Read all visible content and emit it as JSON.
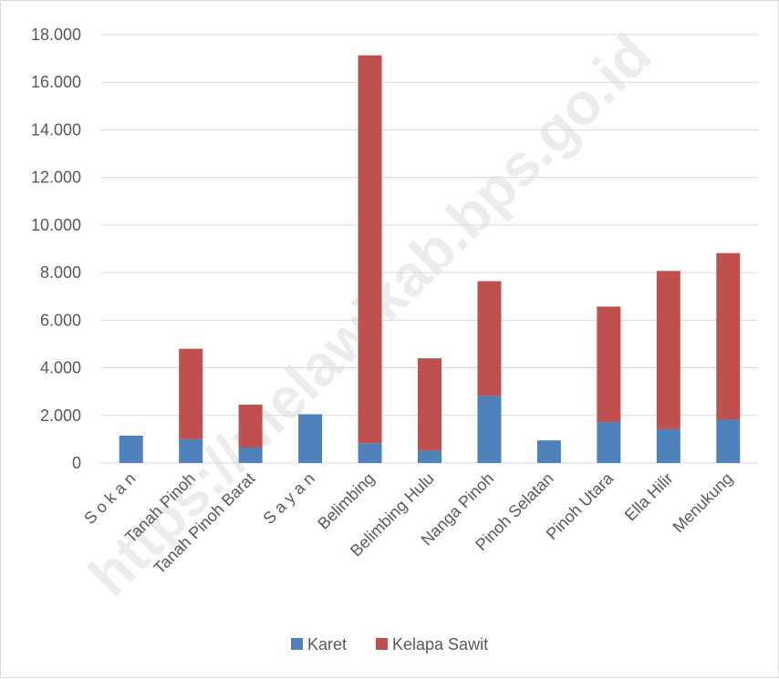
{
  "watermark": "https://melawikab.bps.go.id",
  "colors": {
    "karet": "#4f81bd",
    "kelapa_sawit": "#c0504d",
    "grid": "#d9d9d9",
    "text": "#595959"
  },
  "chart_data": {
    "type": "bar",
    "stacked": true,
    "categories": [
      "S o k a n",
      "Tanah Pinoh",
      "Tanah Pinoh Barat",
      "S a y a n",
      "Belimbing",
      "Belimbing Hulu",
      "Nanga Pinoh",
      "Pinoh Selatan",
      "Pinoh Utara",
      "Ella Hilir",
      "Menukung"
    ],
    "series": [
      {
        "name": "Karet",
        "color": "#4f81bd",
        "values": [
          1150,
          1000,
          650,
          2050,
          830,
          520,
          2820,
          950,
          1720,
          1420,
          1820
        ]
      },
      {
        "name": "Kelapa Sawit",
        "color": "#c0504d",
        "values": [
          0,
          3800,
          1800,
          0,
          16300,
          3880,
          4820,
          0,
          4850,
          6650,
          7000
        ]
      }
    ],
    "ylim": [
      0,
      18000
    ],
    "yticks": [
      0,
      2000,
      4000,
      6000,
      8000,
      10000,
      12000,
      14000,
      16000,
      18000
    ],
    "ytick_labels": [
      "0",
      "2.000",
      "4.000",
      "6.000",
      "8.000",
      "10.000",
      "12.000",
      "14.000",
      "16.000",
      "18.000"
    ],
    "grid": true,
    "legend": "bottom",
    "title": "",
    "xlabel": "",
    "ylabel": ""
  }
}
